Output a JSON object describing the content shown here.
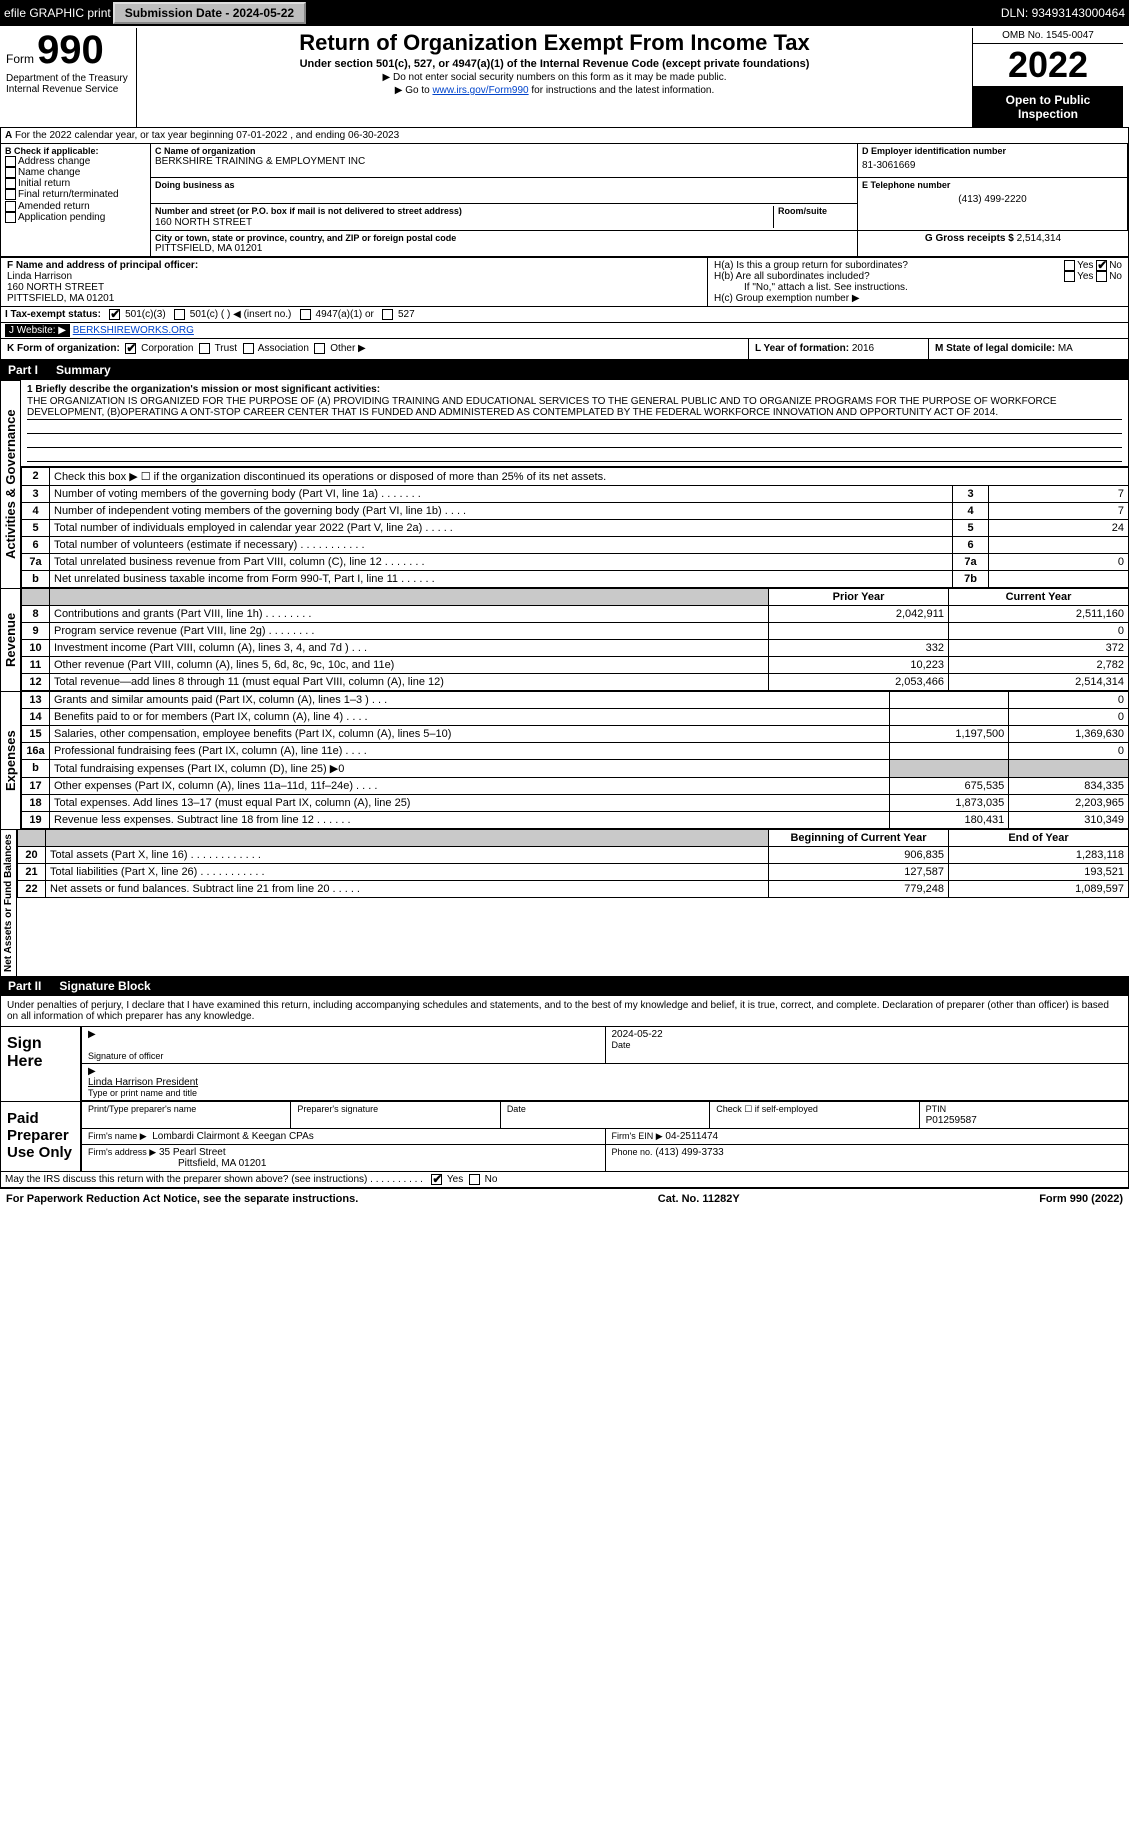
{
  "topbar": {
    "efile": "efile GRAPHIC print",
    "submission_label": "Submission Date - 2024-05-22",
    "dln": "DLN: 93493143000464"
  },
  "header": {
    "form_word": "Form",
    "form_number": "990",
    "title": "Return of Organization Exempt From Income Tax",
    "subtitle": "Under section 501(c), 527, or 4947(a)(1) of the Internal Revenue Code (except private foundations)",
    "note1": "▶ Do not enter social security numbers on this form as it may be made public.",
    "note2_pre": "▶ Go to ",
    "note2_link": "www.irs.gov/Form990",
    "note2_post": " for instructions and the latest information.",
    "omb": "OMB No. 1545-0047",
    "year": "2022",
    "open": "Open to Public Inspection",
    "dept": "Department of the Treasury",
    "irs": "Internal Revenue Service"
  },
  "periodA": "For the 2022 calendar year, or tax year beginning 07-01-2022    , and ending 06-30-2023",
  "boxB": {
    "label": "B Check if applicable:",
    "opts": [
      "Address change",
      "Name change",
      "Initial return",
      "Final return/terminated",
      "Amended return",
      "Application pending"
    ]
  },
  "boxC": {
    "name_label": "C Name of organization",
    "name": "BERKSHIRE TRAINING & EMPLOYMENT INC",
    "dba_label": "Doing business as",
    "street_label": "Number and street (or P.O. box if mail is not delivered to street address)",
    "room_label": "Room/suite",
    "street": "160 NORTH STREET",
    "city_label": "City or town, state or province, country, and ZIP or foreign postal code",
    "city": "PITTSFIELD, MA  01201"
  },
  "boxD": {
    "label": "D Employer identification number",
    "value": "81-3061669"
  },
  "boxE": {
    "label": "E Telephone number",
    "value": "(413) 499-2220"
  },
  "boxG": {
    "label": "G Gross receipts $",
    "value": "2,514,314"
  },
  "boxF": {
    "label": "F  Name and address of principal officer:",
    "name": "Linda Harrison",
    "addr1": "160 NORTH STREET",
    "addr2": "PITTSFIELD, MA  01201"
  },
  "boxH": {
    "ha": "H(a)  Is this a group return for subordinates?",
    "hb": "H(b)  Are all subordinates included?",
    "hb_note": "If \"No,\" attach a list. See instructions.",
    "hc": "H(c)  Group exemption number ▶",
    "yes": "Yes",
    "no": "No"
  },
  "boxI": {
    "label": "I    Tax-exempt status:",
    "opt1": "501(c)(3)",
    "opt2": "501(c) (   ) ◀ (insert no.)",
    "opt3": "4947(a)(1) or",
    "opt4": "527"
  },
  "boxJ": {
    "label": "J    Website: ▶",
    "value": "BERKSHIREWORKS.ORG"
  },
  "boxK": {
    "label": "K Form of organization:",
    "opts": [
      "Corporation",
      "Trust",
      "Association",
      "Other ▶"
    ]
  },
  "boxL": {
    "label": "L Year of formation: ",
    "value": "2016"
  },
  "boxM": {
    "label": "M State of legal domicile: ",
    "value": "MA"
  },
  "part1": {
    "n": "Part I",
    "title": "Summary"
  },
  "part2": {
    "n": "Part II",
    "title": "Signature Block"
  },
  "side_labels": {
    "ag": "Activities & Governance",
    "rev": "Revenue",
    "exp": "Expenses",
    "na": "Net Assets or Fund Balances"
  },
  "mission": {
    "line1text": "1  Briefly describe the organization's mission or most significant activities:",
    "body": "THE ORGANIZATION IS ORGANIZED FOR THE PURPOSE OF (A) PROVIDING TRAINING AND EDUCATIONAL SERVICES TO THE GENERAL PUBLIC AND TO ORGANIZE PROGRAMS FOR THE PURPOSE OF WORKFORCE DEVELOPMENT, (B)OPERATING A ONT-STOP CAREER CENTER THAT IS FUNDED AND ADMINISTERED AS CONTEMPLATED BY THE FEDERAL WORKFORCE INNOVATION AND OPPORTUNITY ACT OF 2014."
  },
  "gov_rows": [
    {
      "n": "2",
      "desc": "Check this box ▶ ☐ if the organization discontinued its operations or disposed of more than 25% of its net assets.",
      "box": "",
      "val": ""
    },
    {
      "n": "3",
      "desc": "Number of voting members of the governing body (Part VI, line 1a)   .    .    .    .    .    .    .",
      "box": "3",
      "val": "7"
    },
    {
      "n": "4",
      "desc": "Number of independent voting members of the governing body (Part VI, line 1b)   .    .    .    .",
      "box": "4",
      "val": "7"
    },
    {
      "n": "5",
      "desc": "Total number of individuals employed in calendar year 2022 (Part V, line 2a)   .    .    .    .    .",
      "box": "5",
      "val": "24"
    },
    {
      "n": "6",
      "desc": "Total number of volunteers (estimate if necessary)   .    .    .    .    .    .    .    .    .    .    .",
      "box": "6",
      "val": ""
    },
    {
      "n": "7a",
      "desc": "Total unrelated business revenue from Part VIII, column (C), line 12   .    .    .    .    .    .    .",
      "box": "7a",
      "val": "0"
    },
    {
      "n": "b",
      "desc": "Net unrelated business taxable income from Form 990-T, Part I, line 11   .    .    .    .    .    .",
      "box": "7b",
      "val": ""
    }
  ],
  "two_col_header": {
    "prior": "Prior Year",
    "current": "Current Year"
  },
  "rev_rows": [
    {
      "n": "8",
      "desc": "Contributions and grants (Part VIII, line 1h)   .    .    .    .    .    .    .    .",
      "p": "2,042,911",
      "c": "2,511,160"
    },
    {
      "n": "9",
      "desc": "Program service revenue (Part VIII, line 2g)   .    .    .    .    .    .    .    .",
      "p": "",
      "c": "0"
    },
    {
      "n": "10",
      "desc": "Investment income (Part VIII, column (A), lines 3, 4, and 7d )   .    .    .",
      "p": "332",
      "c": "372"
    },
    {
      "n": "11",
      "desc": "Other revenue (Part VIII, column (A), lines 5, 6d, 8c, 9c, 10c, and 11e)",
      "p": "10,223",
      "c": "2,782"
    },
    {
      "n": "12",
      "desc": "Total revenue—add lines 8 through 11 (must equal Part VIII, column (A), line 12)",
      "p": "2,053,466",
      "c": "2,514,314"
    }
  ],
  "exp_rows": [
    {
      "n": "13",
      "desc": "Grants and similar amounts paid (Part IX, column (A), lines 1–3 )   .    .    .",
      "p": "",
      "c": "0"
    },
    {
      "n": "14",
      "desc": "Benefits paid to or for members (Part IX, column (A), line 4)   .    .    .    .",
      "p": "",
      "c": "0"
    },
    {
      "n": "15",
      "desc": "Salaries, other compensation, employee benefits (Part IX, column (A), lines 5–10)",
      "p": "1,197,500",
      "c": "1,369,630"
    },
    {
      "n": "16a",
      "desc": "Professional fundraising fees (Part IX, column (A), line 11e)   .    .    .    .",
      "p": "",
      "c": "0"
    },
    {
      "n": "b",
      "desc": "Total fundraising expenses (Part IX, column (D), line 25) ▶0",
      "p": "__shade__",
      "c": "__shade__"
    },
    {
      "n": "17",
      "desc": "Other expenses (Part IX, column (A), lines 11a–11d, 11f–24e)   .    .    .    .",
      "p": "675,535",
      "c": "834,335"
    },
    {
      "n": "18",
      "desc": "Total expenses. Add lines 13–17 (must equal Part IX, column (A), line 25)",
      "p": "1,873,035",
      "c": "2,203,965"
    },
    {
      "n": "19",
      "desc": "Revenue less expenses. Subtract line 18 from line 12   .    .    .    .    .    .",
      "p": "180,431",
      "c": "310,349"
    }
  ],
  "na_header": {
    "begin": "Beginning of Current Year",
    "end": "End of Year"
  },
  "na_rows": [
    {
      "n": "20",
      "desc": "Total assets (Part X, line 16)   .    .    .    .    .    .    .    .    .    .    .    .",
      "p": "906,835",
      "c": "1,283,118"
    },
    {
      "n": "21",
      "desc": "Total liabilities (Part X, line 26)   .    .    .    .    .    .    .    .    .    .    .",
      "p": "127,587",
      "c": "193,521"
    },
    {
      "n": "22",
      "desc": "Net assets or fund balances. Subtract line 21 from line 20   .    .    .    .    .",
      "p": "779,248",
      "c": "1,089,597"
    }
  ],
  "sig": {
    "penalties": "Under penalties of perjury, I declare that I have examined this return, including accompanying schedules and statements, and to the best of my knowledge and belief, it is true, correct, and complete. Declaration of preparer (other than officer) is based on all information of which preparer has any knowledge.",
    "sign_here": "Sign Here",
    "sig_officer": "Signature of officer",
    "date": "2024-05-22",
    "date_label": "Date",
    "officer_name": "Linda Harrison  President",
    "officer_label": "Type or print name and title",
    "paid": "Paid Preparer Use Only",
    "prep_name_label": "Print/Type preparer's name",
    "prep_sig_label": "Preparer's signature",
    "prep_date_label": "Date",
    "self_emp": "Check ☐ if self-employed",
    "ptin_label": "PTIN",
    "ptin": "P01259587",
    "firm_name_label": "Firm's name    ▶",
    "firm_name": "Lombardi Clairmont & Keegan CPAs",
    "firm_ein_label": "Firm's EIN ▶",
    "firm_ein": "04-2511474",
    "firm_addr_label": "Firm's address ▶",
    "firm_addr1": "35 Pearl Street",
    "firm_addr2": "Pittsfield, MA  01201",
    "phone_label": "Phone no.",
    "phone": "(413) 499-3733",
    "discuss": "May the IRS discuss this return with the preparer shown above? (see instructions)   .    .    .    .    .    .    .    .    .    .",
    "yes": "Yes",
    "no": "No"
  },
  "footer": {
    "pra": "For Paperwork Reduction Act Notice, see the separate instructions.",
    "cat": "Cat. No. 11282Y",
    "form": "Form 990 (2022)"
  }
}
